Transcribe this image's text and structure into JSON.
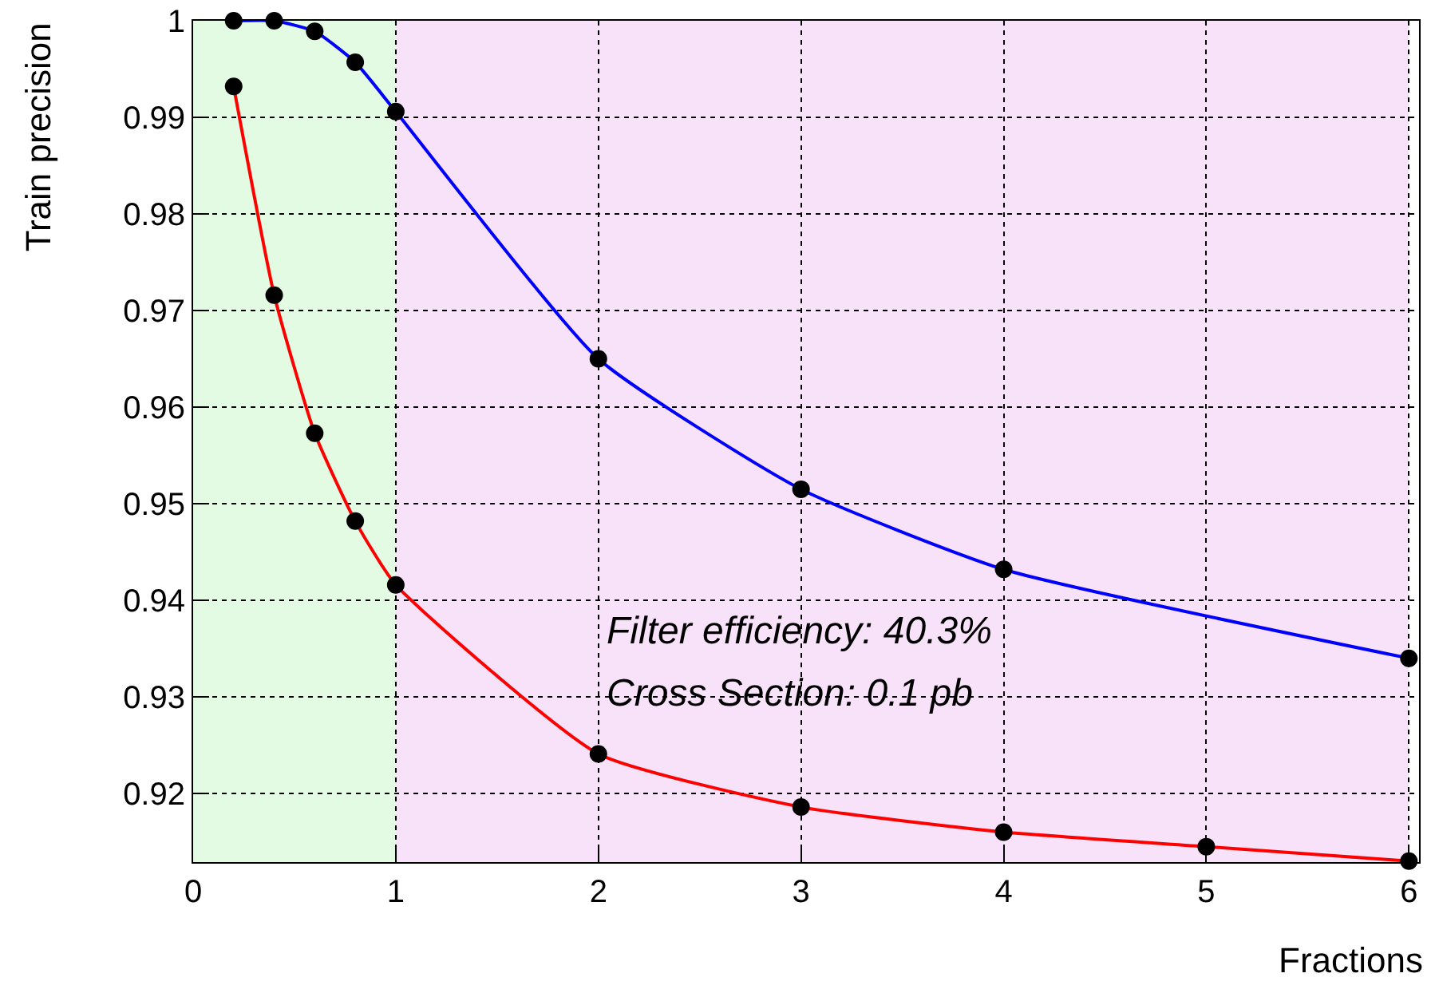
{
  "chart_data": {
    "type": "line",
    "xlabel": "Fractions",
    "ylabel": "Train precision",
    "x": [
      0.2,
      0.4,
      0.6,
      0.8,
      1,
      2,
      3,
      4,
      5,
      6
    ],
    "series": [
      {
        "color": "#0000ff",
        "values": [
          1.0,
          1.0,
          0.9989,
          0.9957,
          0.9906,
          0.965,
          0.9515,
          0.9432,
          null,
          0.934
        ]
      },
      {
        "color": "#ff0000",
        "values": [
          0.9932,
          0.9716,
          0.9573,
          0.9482,
          0.9416,
          0.9241,
          0.9186,
          0.916,
          0.9145,
          0.913
        ]
      }
    ],
    "xlim": [
      0,
      6.05
    ],
    "ylim": [
      0.9129,
      1
    ],
    "xticks": [
      0,
      1,
      2,
      3,
      4,
      5,
      6
    ],
    "yticks": [
      {
        "value": 0.92,
        "label": "0.92"
      },
      {
        "value": 0.93,
        "label": "0.93"
      },
      {
        "value": 0.94,
        "label": "0.94"
      },
      {
        "value": 0.95,
        "label": "0.95"
      },
      {
        "value": 0.96,
        "label": "0.96"
      },
      {
        "value": 0.97,
        "label": "0.97"
      },
      {
        "value": 0.98,
        "label": "0.98"
      },
      {
        "value": 0.99,
        "label": "0.99"
      },
      1
    ],
    "bands": [
      {
        "axis": "x",
        "from": 0,
        "to": 1,
        "color": "#e2fbe2"
      },
      {
        "axis": "x",
        "from": 1,
        "to": 6,
        "color": "#f8e2fa"
      }
    ],
    "annotations": [
      "Filter efficiency: 40.3%",
      "Cross Section: 0.1 pb"
    ],
    "grid": true,
    "marker": "circle",
    "line_style": "solid"
  }
}
